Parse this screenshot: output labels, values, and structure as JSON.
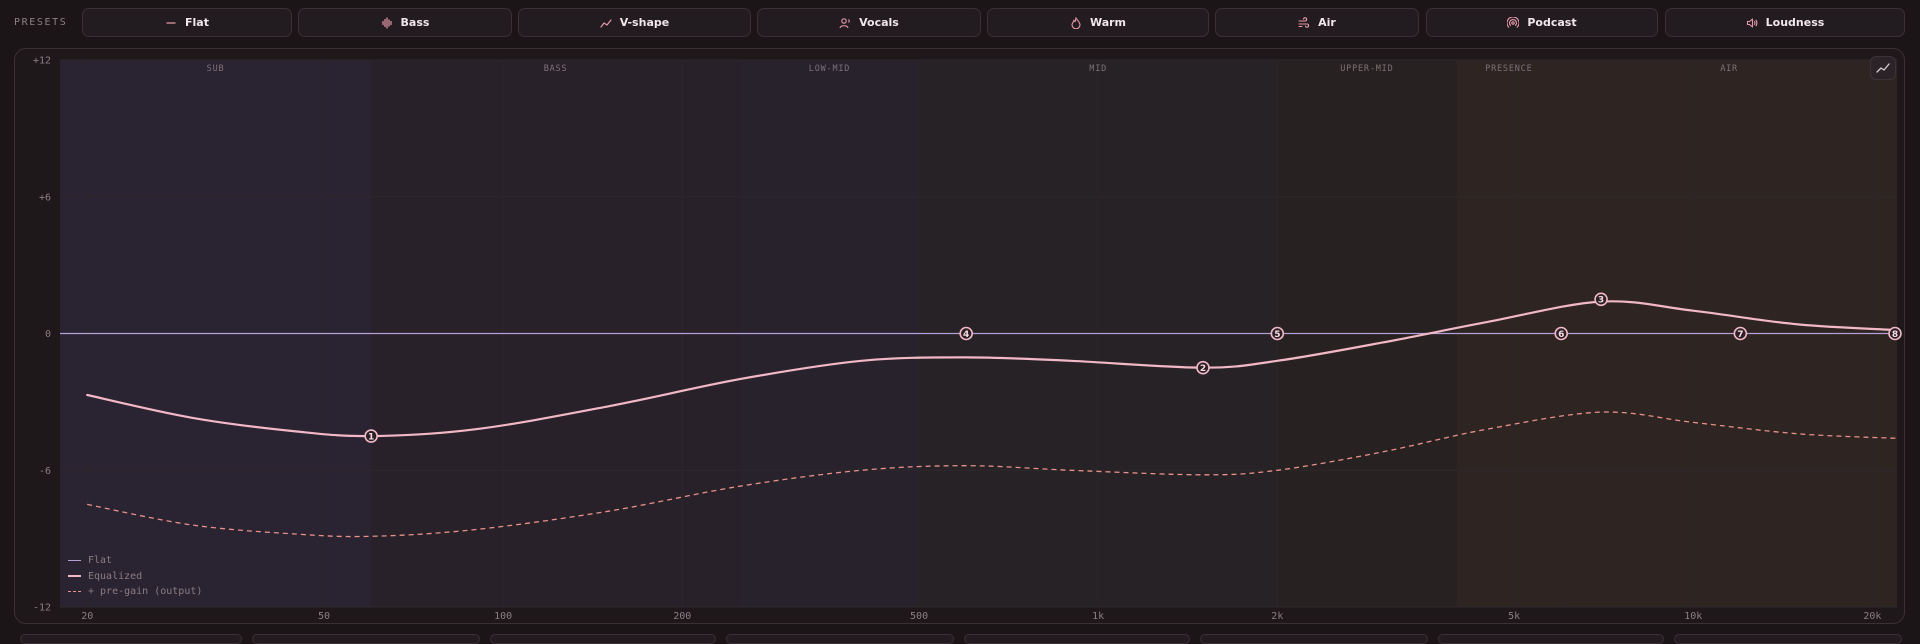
{
  "presets": {
    "label": "PRESETS",
    "items": [
      {
        "id": "flat",
        "label": "Flat",
        "icon": "dash-icon"
      },
      {
        "id": "bass",
        "label": "Bass",
        "icon": "waveform-icon"
      },
      {
        "id": "vshape",
        "label": "V-shape",
        "icon": "trend-icon"
      },
      {
        "id": "vocals",
        "label": "Vocals",
        "icon": "user-voice-icon"
      },
      {
        "id": "warm",
        "label": "Warm",
        "icon": "flame-icon"
      },
      {
        "id": "air",
        "label": "Air",
        "icon": "wind-icon"
      },
      {
        "id": "podcast",
        "label": "Podcast",
        "icon": "broadcast-icon"
      },
      {
        "id": "loudness",
        "label": "Loudness",
        "icon": "speaker-icon"
      }
    ]
  },
  "colors": {
    "flat_line": "#b49fd6",
    "eq_line": "#f2b8c6",
    "pregain_line": "#e99088",
    "node_fill": "#2a2025"
  },
  "chart_data": {
    "type": "line",
    "x_scale": "log",
    "xlim": [
      18,
      22000
    ],
    "ylim": [
      -12,
      12
    ],
    "grid": true,
    "legend_position": "bottom-left",
    "x_ticks": [
      {
        "value": 20,
        "label": "20"
      },
      {
        "value": 50,
        "label": "50"
      },
      {
        "value": 100,
        "label": "100"
      },
      {
        "value": 200,
        "label": "200"
      },
      {
        "value": 500,
        "label": "500"
      },
      {
        "value": 1000,
        "label": "1k"
      },
      {
        "value": 2000,
        "label": "2k"
      },
      {
        "value": 5000,
        "label": "5k"
      },
      {
        "value": 10000,
        "label": "10k"
      },
      {
        "value": 20000,
        "label": "20k"
      }
    ],
    "y_ticks": [
      {
        "value": 12,
        "label": "+12"
      },
      {
        "value": 6,
        "label": "+6"
      },
      {
        "value": 0,
        "label": "0"
      },
      {
        "value": -6,
        "label": "-6"
      },
      {
        "value": -12,
        "label": "-12"
      }
    ],
    "bands": [
      {
        "label": "SUB",
        "from": 18,
        "to": 60,
        "tint": "#2a2433"
      },
      {
        "label": "BASS",
        "from": 60,
        "to": 250,
        "tint": "#29222b"
      },
      {
        "label": "LOW-MID",
        "from": 250,
        "to": 500,
        "tint": "#27232d"
      },
      {
        "label": "MID",
        "from": 500,
        "to": 2000,
        "tint": "#262326"
      },
      {
        "label": "UPPER-MID",
        "from": 2000,
        "to": 4000,
        "tint": "#272322"
      },
      {
        "label": "PRESENCE",
        "from": 4000,
        "to": 6000,
        "tint": "#2e2523"
      },
      {
        "label": "AIR",
        "from": 6000,
        "to": 22000,
        "tint": "#2e2522"
      }
    ],
    "series": [
      {
        "name": "Flat",
        "style": "thin",
        "points": [
          [
            18,
            0
          ],
          [
            22000,
            0
          ]
        ]
      },
      {
        "name": "Equalized",
        "style": "solid",
        "points": [
          [
            20,
            -2.7
          ],
          [
            30,
            -3.7
          ],
          [
            45,
            -4.3
          ],
          [
            60,
            -4.5
          ],
          [
            90,
            -4.2
          ],
          [
            150,
            -3.2
          ],
          [
            250,
            -2.0
          ],
          [
            400,
            -1.2
          ],
          [
            600,
            -1.05
          ],
          [
            900,
            -1.2
          ],
          [
            1500,
            -1.5
          ],
          [
            2000,
            -1.2
          ],
          [
            3000,
            -0.4
          ],
          [
            4500,
            0.5
          ],
          [
            7000,
            1.4
          ],
          [
            10000,
            1.0
          ],
          [
            15000,
            0.4
          ],
          [
            22000,
            0.15
          ]
        ]
      },
      {
        "name": "+ pre-gain (output)",
        "style": "dashed",
        "points": [
          [
            20,
            -7.5
          ],
          [
            30,
            -8.4
          ],
          [
            45,
            -8.8
          ],
          [
            60,
            -8.9
          ],
          [
            90,
            -8.6
          ],
          [
            150,
            -7.8
          ],
          [
            250,
            -6.7
          ],
          [
            400,
            -6.0
          ],
          [
            600,
            -5.8
          ],
          [
            900,
            -6.0
          ],
          [
            1500,
            -6.2
          ],
          [
            2000,
            -6.0
          ],
          [
            3000,
            -5.2
          ],
          [
            4500,
            -4.2
          ],
          [
            7000,
            -3.45
          ],
          [
            10000,
            -3.9
          ],
          [
            15000,
            -4.4
          ],
          [
            22000,
            -4.6
          ]
        ]
      }
    ],
    "nodes": [
      {
        "label": "1",
        "freq": 60,
        "gain": -4.5
      },
      {
        "label": "2",
        "freq": 1500,
        "gain": -1.5
      },
      {
        "label": "3",
        "freq": 7000,
        "gain": 1.5
      },
      {
        "label": "4",
        "freq": 600,
        "gain": 0
      },
      {
        "label": "5",
        "freq": 2000,
        "gain": 0
      },
      {
        "label": "6",
        "freq": 6000,
        "gain": 0
      },
      {
        "label": "7",
        "freq": 12000,
        "gain": 0
      },
      {
        "label": "8",
        "freq": 22000,
        "gain": 0
      }
    ]
  },
  "toggle": {
    "icon": "chart-line-icon"
  }
}
